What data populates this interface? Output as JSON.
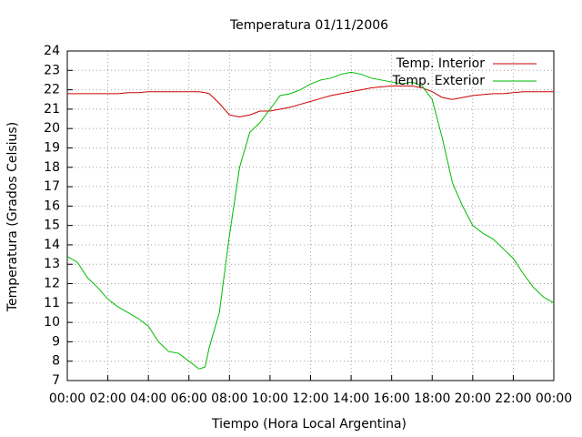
{
  "chart_data": {
    "type": "line",
    "title": "Temperatura 01/11/2006",
    "x_label": "Tiempo (Hora Local Argentina)",
    "y_label": "Temperatura (Grados Celsius)",
    "x": [
      0,
      0.5,
      1,
      1.5,
      2,
      2.5,
      3,
      3.5,
      4,
      4.5,
      5,
      5.5,
      6,
      6.5,
      6.8,
      7,
      7.5,
      8,
      8.5,
      9,
      9.5,
      10,
      10.5,
      11,
      11.5,
      12,
      12.5,
      13,
      13.5,
      14,
      14.5,
      15,
      15.5,
      16,
      16.5,
      17,
      17.5,
      18,
      18.5,
      19,
      19.5,
      20,
      20.5,
      21,
      21.5,
      22,
      22.5,
      23,
      23.5,
      24
    ],
    "series": [
      {
        "name": "Temp. Interior",
        "color": "#cc0000",
        "values": [
          21.8,
          21.8,
          21.8,
          21.8,
          21.8,
          21.8,
          21.85,
          21.85,
          21.9,
          21.9,
          21.9,
          21.9,
          21.9,
          21.9,
          21.85,
          21.8,
          21.3,
          20.7,
          20.6,
          20.7,
          20.9,
          20.9,
          21.0,
          21.1,
          21.25,
          21.4,
          21.55,
          21.7,
          21.8,
          21.9,
          22.0,
          22.1,
          22.15,
          22.2,
          22.2,
          22.2,
          22.1,
          21.9,
          21.6,
          21.5,
          21.6,
          21.7,
          21.75,
          21.8,
          21.8,
          21.85,
          21.9,
          21.9,
          21.9,
          21.9
        ]
      },
      {
        "name": "Temp. Exterior",
        "color": "#00bb00",
        "values": [
          13.4,
          13.1,
          12.3,
          11.8,
          11.2,
          10.8,
          10.5,
          10.2,
          9.8,
          9.0,
          8.5,
          8.4,
          8.0,
          7.6,
          7.7,
          8.7,
          10.5,
          14.5,
          18.0,
          19.8,
          20.3,
          21.0,
          21.7,
          21.8,
          22.0,
          22.3,
          22.5,
          22.6,
          22.8,
          22.9,
          22.8,
          22.6,
          22.5,
          22.4,
          22.3,
          22.4,
          22.2,
          21.5,
          19.5,
          17.2,
          16.0,
          15.0,
          14.6,
          14.3,
          13.8,
          13.3,
          12.5,
          11.8,
          11.3,
          11.0
        ]
      }
    ],
    "xlim": [
      0,
      24
    ],
    "xticks": [
      {
        "value": 0,
        "label": "00:00"
      },
      {
        "value": 2,
        "label": "02:00"
      },
      {
        "value": 4,
        "label": "04:00"
      },
      {
        "value": 6,
        "label": "06:00"
      },
      {
        "value": 8,
        "label": "08:00"
      },
      {
        "value": 10,
        "label": "10:00"
      },
      {
        "value": 12,
        "label": "12:00"
      },
      {
        "value": 14,
        "label": "14:00"
      },
      {
        "value": 16,
        "label": "16:00"
      },
      {
        "value": 18,
        "label": "18:00"
      },
      {
        "value": 20,
        "label": "20:00"
      },
      {
        "value": 22,
        "label": "22:00"
      },
      {
        "value": 24,
        "label": "00:00"
      }
    ],
    "ylim": [
      7,
      24
    ],
    "yticks": [
      7,
      8,
      9,
      10,
      11,
      12,
      13,
      14,
      15,
      16,
      17,
      18,
      19,
      20,
      21,
      22,
      23,
      24
    ],
    "grid": true,
    "legend": "top-right"
  }
}
